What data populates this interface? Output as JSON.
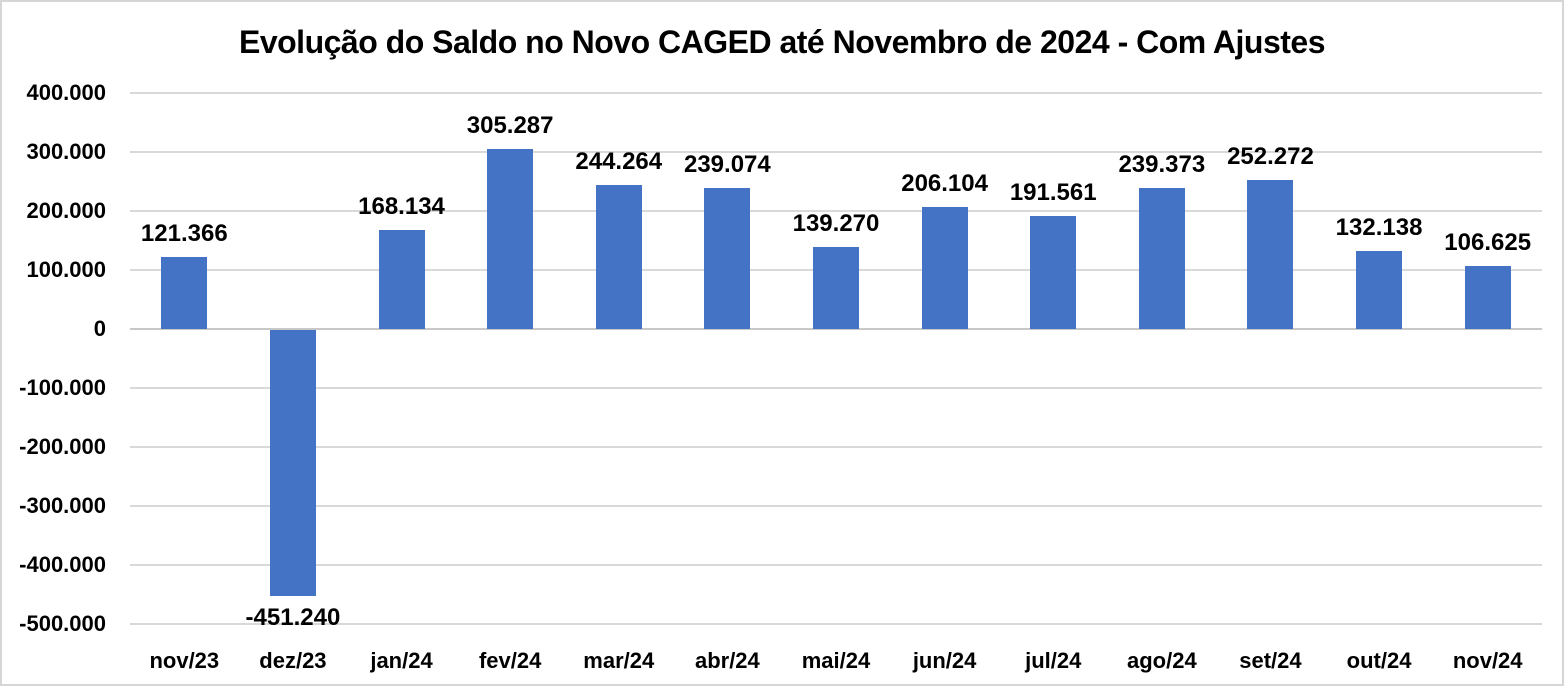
{
  "title": "Evolução do Saldo no Novo CAGED até Novembro de 2024 - Com Ajustes",
  "chart_data": {
    "type": "bar",
    "title": "Evolução do Saldo no Novo CAGED até Novembro de 2024 - Com Ajustes",
    "xlabel": "",
    "ylabel": "",
    "categories": [
      "nov/23",
      "dez/23",
      "jan/24",
      "fev/24",
      "mar/24",
      "abr/24",
      "mai/24",
      "jun/24",
      "jul/24",
      "ago/24",
      "set/24",
      "out/24",
      "nov/24"
    ],
    "values": [
      121366,
      -451240,
      168134,
      305287,
      244264,
      239074,
      139270,
      206104,
      191561,
      239373,
      252272,
      132138,
      106625
    ],
    "data_labels": [
      "121.366",
      "-451.240",
      "168.134",
      "305.287",
      "244.264",
      "239.074",
      "139.270",
      "206.104",
      "191.561",
      "239.373",
      "252.272",
      "132.138",
      "106.625"
    ],
    "ylim": [
      -500000,
      400000
    ],
    "ytick_interval": 100000,
    "ytick_labels_top_to_bottom": [
      "400.000",
      "300.000",
      "200.000",
      "100.000",
      "0",
      "-100.000",
      "-200.000",
      "-300.000",
      "-400.000",
      "-500.000"
    ],
    "grid": true,
    "legend": false,
    "data_label_position": "outside-end",
    "colors": {
      "bar": "#4472C4",
      "gridline": "#D9D9D9",
      "zero_axis": "#C8C8C8",
      "text": "#000000",
      "background": "#FFFFFF",
      "frame_border": "#D6D6D6"
    }
  }
}
